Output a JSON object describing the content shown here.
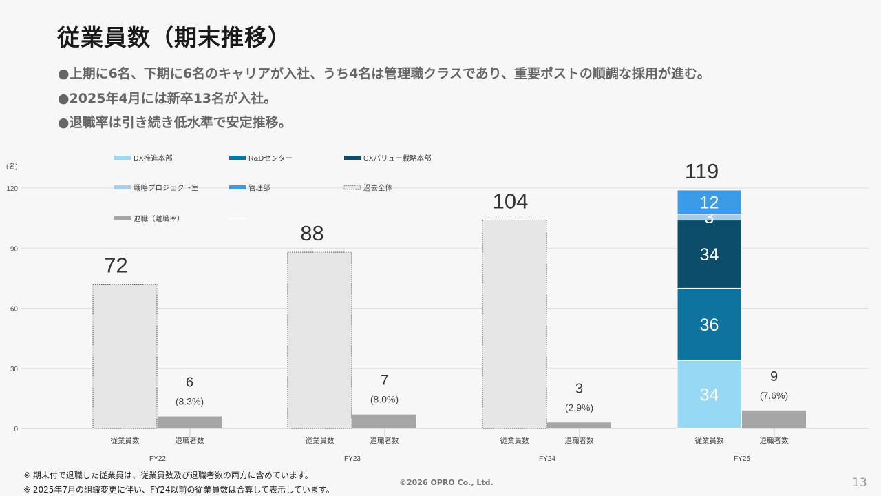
{
  "slide": {
    "title": "従業員数（期末推移）",
    "bullets": [
      "●上期に6名、下期に6名のキャリアが入社、うち4名は管理職クラスであり、重要ポストの順調な採用が進む。",
      "●2025年4月には新卒13名が入社。",
      "●退職率は引き続き低水準で安定推移。"
    ],
    "footnotes": [
      "※ 期末付で退職した従業員は、従業員数及び退職者数の両方に含めています。",
      "※ 2025年7月の組織変更に伴い、FY24以前の従業員数は合算して表示しています。"
    ],
    "copyright": "©2026 OPRO Co., Ltd.",
    "page_number": "13"
  },
  "chart_data": {
    "type": "bar",
    "y_unit": "(名)",
    "ylim": [
      0,
      120
    ],
    "yticks": [
      0,
      30,
      60,
      90,
      120
    ],
    "grid": true,
    "legend_position": "top-left",
    "categories": [
      "FY22",
      "FY23",
      "FY24",
      "FY25"
    ],
    "bar_labels": [
      "従業員数",
      "退職者数"
    ],
    "employees_past_total": [
      72,
      88,
      104,
      null
    ],
    "employees_total": [
      72,
      88,
      104,
      119
    ],
    "fy25_stack": [
      {
        "name": "DX推進本部",
        "value": 34,
        "color": "#97d9f5"
      },
      {
        "name": "R&Dセンター",
        "value": 36,
        "color": "#0f73a0"
      },
      {
        "name": "CXバリュー戦略本部",
        "value": 34,
        "color": "#0b4d6b"
      },
      {
        "name": "戦略プロジェクト室",
        "value": 3,
        "color": "#a6cdea"
      },
      {
        "name": "管理部",
        "value": 12,
        "color": "#3b9be6"
      }
    ],
    "past_total_series": {
      "name": "過去全体",
      "color": "#e6e6e6"
    },
    "retirees_series": {
      "name": "退職（離職率）",
      "color": "#a6a6a6"
    },
    "retirees": [
      6,
      7,
      3,
      9
    ],
    "retirement_rate_labels": [
      "(8.3%)",
      "(8.0%)",
      "(2.9%)",
      "(7.6%)"
    ]
  }
}
